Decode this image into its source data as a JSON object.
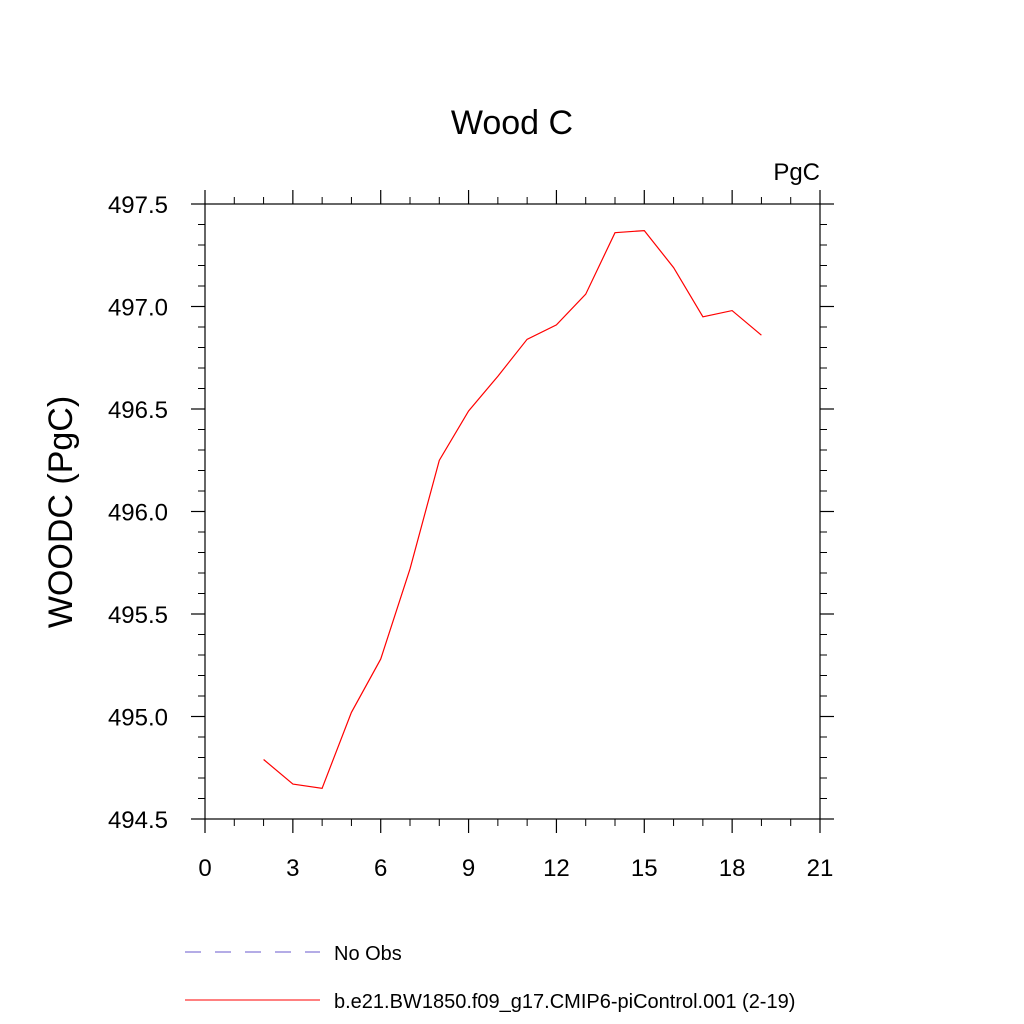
{
  "chart_data": {
    "type": "line",
    "title": "Wood C",
    "units_label": "PgC",
    "ylabel": "WOODC  (PgC)",
    "xlabel": "",
    "xlim": [
      0,
      21
    ],
    "ylim": [
      494.5,
      497.5
    ],
    "x_ticks": [
      0,
      3,
      6,
      9,
      12,
      15,
      18,
      21
    ],
    "y_ticks": [
      494.5,
      495.0,
      495.5,
      496.0,
      496.5,
      497.0,
      497.5
    ],
    "y_tick_labels": [
      "494.5",
      "495.0",
      "495.5",
      "496.0",
      "496.5",
      "497.0",
      "497.5"
    ],
    "grid": false,
    "legend_position": "bottom",
    "series": [
      {
        "name": "No Obs",
        "color": "#6a5acd",
        "dash": "dashed",
        "x": [],
        "y": []
      },
      {
        "name": "b.e21.BW1850.f09_g17.CMIP6-piControl.001 (2-19)",
        "color": "#ff0000",
        "dash": "solid",
        "x": [
          2,
          3,
          4,
          5,
          6,
          7,
          8,
          9,
          10,
          11,
          12,
          13,
          14,
          15,
          16,
          17,
          18,
          19
        ],
        "y": [
          494.79,
          494.67,
          494.65,
          495.02,
          495.28,
          495.72,
          496.25,
          496.49,
          496.66,
          496.84,
          496.91,
          497.06,
          497.36,
          497.37,
          497.19,
          496.95,
          496.98,
          496.86
        ]
      }
    ]
  }
}
